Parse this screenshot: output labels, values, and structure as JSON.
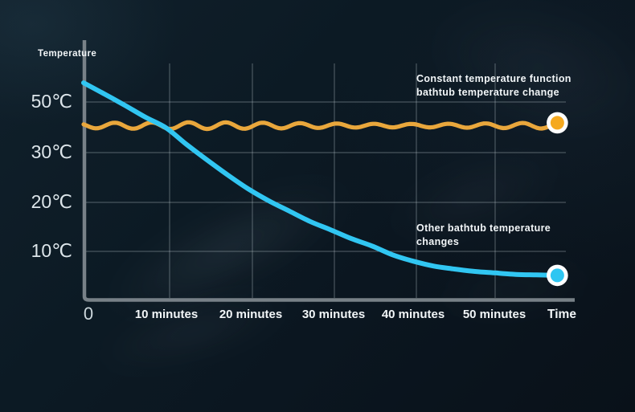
{
  "page": {
    "theme": "dark-smoke-infographic",
    "background_color": "#0b1620"
  },
  "chart_data": {
    "type": "line",
    "title": "",
    "x_axis": {
      "label": "Time",
      "origin_label": "0",
      "tick_labels": [
        "10 minutes",
        "20 minutes",
        "30 minutes",
        "40 minutes",
        "50 minutes"
      ],
      "tick_values_min": [
        10,
        20,
        30,
        40,
        50
      ],
      "range_min": [
        0,
        60
      ],
      "unit": "minutes"
    },
    "y_axis": {
      "label": "Temperature",
      "tick_labels": [
        "50℃",
        "30℃",
        "20℃",
        "10℃"
      ],
      "tick_values_c": [
        50,
        30,
        20,
        10
      ],
      "ticks_evenly_spaced_nonlinear": true,
      "unit": "℃"
    },
    "grid": true,
    "legend_position": "inline-annotations",
    "axis_color": "#7E878D",
    "grid_color": "#C8D4DA",
    "text_color": "#F2F6F8",
    "series": [
      {
        "name": "Constant temperature function bathtub temperature change",
        "color": "#E9A73C",
        "marker_fill": "#F5A91F",
        "marker_ring": "#FFFFFF",
        "shape": "wavy-constant",
        "mean_c": 40.5,
        "ripple_amplitude_c": 1.3,
        "ripple_period_min": 4.5,
        "t_start_min": 0,
        "t_end_min": 57.5
      },
      {
        "name": "Other bathtub temperature changes",
        "color": "#31C6F2",
        "marker_fill": "#2EC6F2",
        "marker_ring": "#FFFFFF",
        "shape": "decay",
        "points_min_c": [
          [
            0,
            57.6
          ],
          [
            2.5,
            53.2
          ],
          [
            5,
            48.7
          ],
          [
            7.5,
            44.0
          ],
          [
            10,
            39.8
          ],
          [
            12.5,
            33.2
          ],
          [
            15,
            28.5
          ],
          [
            17.5,
            25.5
          ],
          [
            20,
            22.7
          ],
          [
            22.5,
            20.3
          ],
          [
            25,
            18.2
          ],
          [
            27.5,
            16.1
          ],
          [
            30,
            14.4
          ],
          [
            32.5,
            12.6
          ],
          [
            35,
            11.1
          ],
          [
            37.5,
            9.3
          ],
          [
            40,
            8.0
          ],
          [
            42.5,
            7.0
          ],
          [
            45,
            6.4
          ],
          [
            47.5,
            5.9
          ],
          [
            50,
            5.6
          ],
          [
            52.5,
            5.3
          ],
          [
            55,
            5.2
          ],
          [
            57.5,
            5.1
          ]
        ]
      }
    ],
    "annotations": [
      {
        "target": "constant-series",
        "lines": [
          "Constant temperature function",
          "bathtub temperature change"
        ]
      },
      {
        "target": "other-series",
        "lines": [
          "Other bathtub temperature",
          "changes"
        ]
      }
    ]
  }
}
